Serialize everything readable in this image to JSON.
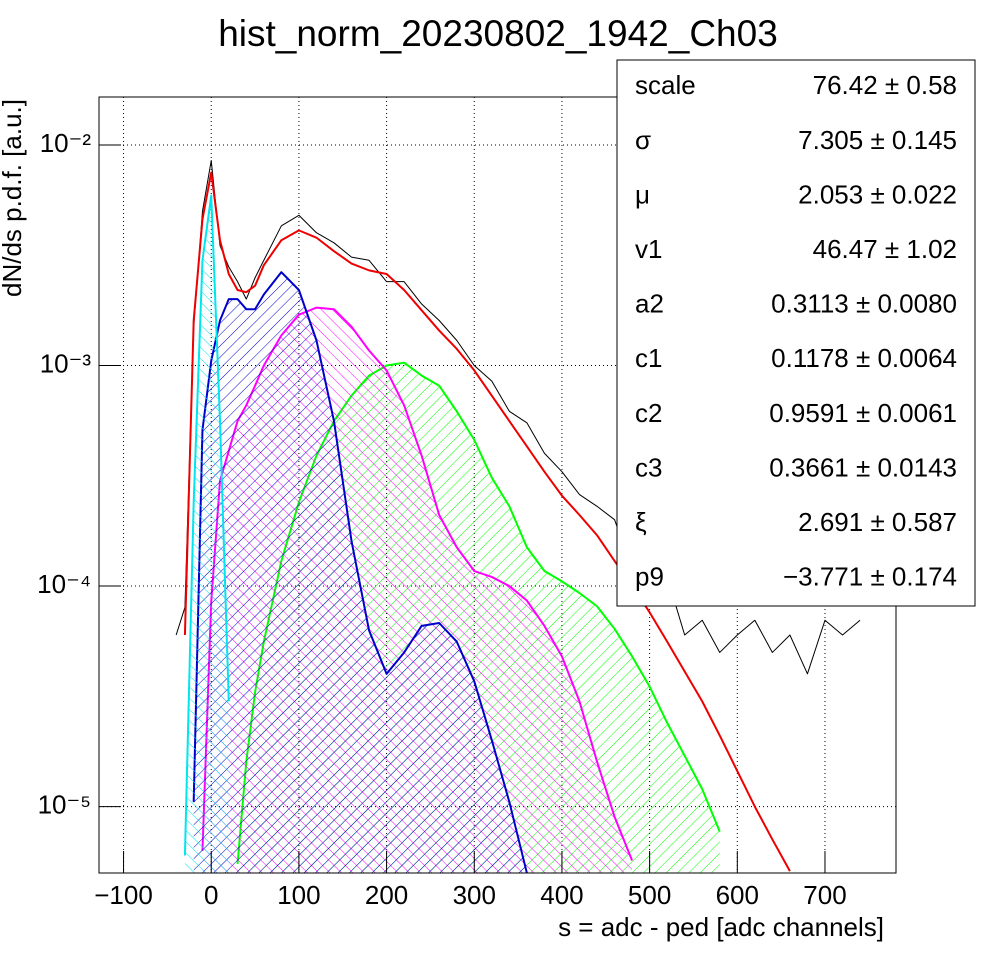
{
  "chart_data": {
    "type": "line",
    "title": "hist_norm_20230802_1942_Ch03",
    "x_label": "s = adc - ped [adc channels]",
    "y_label": "dN/ds p.d.f. [a.u.]",
    "log_y": true,
    "grid": true,
    "xlim": [
      -128,
      781
    ],
    "ylim": [
      5e-06,
      0.0165
    ],
    "xticks": [
      {
        "value": -100,
        "label": "−100"
      },
      0,
      100,
      200,
      300,
      400,
      500,
      600,
      700
    ],
    "yticks": [
      {
        "value": 0.01,
        "label": "10⁻²"
      },
      {
        "value": 0.001,
        "label": "10⁻³"
      },
      {
        "value": 0.0001,
        "label": "10⁻⁴"
      },
      {
        "value": 1e-05,
        "label": "10⁻⁵"
      }
    ],
    "x": [
      -40,
      -30,
      -20,
      -10,
      0,
      10,
      20,
      30,
      40,
      50,
      60,
      80,
      100,
      120,
      140,
      160,
      180,
      200,
      220,
      240,
      260,
      280,
      300,
      320,
      340,
      360,
      380,
      400,
      420,
      440,
      460,
      480,
      500,
      520,
      540,
      560,
      580,
      600,
      620,
      640,
      660,
      680,
      700,
      720,
      740
    ],
    "series": [
      {
        "color": "#000000",
        "values": [
          6e-05,
          8e-05,
          0.0015,
          0.005,
          0.0085,
          0.0035,
          0.0028,
          0.0024,
          0.002,
          0.0025,
          0.003,
          0.0043,
          0.0048,
          0.004,
          0.0036,
          0.0031,
          0.003,
          0.0024,
          0.0024,
          0.0019,
          0.0016,
          0.0013,
          0.001,
          0.00085,
          0.00062,
          0.00055,
          0.0004,
          0.00033,
          0.00026,
          0.00023,
          0.0002,
          0.00012,
          9e-05,
          0.00011,
          6e-05,
          7e-05,
          5e-05,
          6e-05,
          7e-05,
          5e-05,
          6e-05,
          4e-05,
          7e-05,
          6e-05,
          7e-05
        ]
      },
      {
        "color": "#00ff00",
        "fill": "hatch",
        "values": [
          null,
          null,
          null,
          null,
          null,
          null,
          null,
          5.5e-06,
          1.6e-05,
          3.3e-05,
          5.6e-05,
          0.00013,
          0.00024,
          0.00039,
          0.00056,
          0.00073,
          0.0009,
          0.001,
          0.00103,
          0.0009,
          0.00081,
          0.00062,
          0.00046,
          0.00031,
          0.00023,
          0.00015,
          0.000117,
          0.000105,
          9.3e-05,
          8.1e-05,
          6.4e-05,
          4.8e-05,
          3.5e-05,
          2.4e-05,
          1.7e-05,
          1.2e-05,
          7.7e-06,
          null,
          null,
          null,
          null,
          null,
          null,
          null,
          null
        ]
      },
      {
        "color": "#ff00ff",
        "fill": "hatch",
        "values": [
          null,
          null,
          null,
          6.3e-06,
          8.5e-05,
          0.0003,
          0.00041,
          0.00056,
          0.00066,
          0.00081,
          0.001,
          0.00137,
          0.0017,
          0.00183,
          0.0018,
          0.0015,
          0.00117,
          0.00095,
          0.00066,
          0.00039,
          0.00021,
          0.00015,
          0.000117,
          0.00011,
          0.0001,
          8.6e-05,
          6.6e-05,
          4.8e-05,
          3e-05,
          1.6e-05,
          9e-06,
          5.7e-06,
          null,
          null,
          null,
          null,
          null,
          null,
          null,
          null,
          null,
          null,
          null,
          null,
          null
        ]
      },
      {
        "color": "#0000cc",
        "fill": "hatch",
        "values": [
          null,
          null,
          1.05e-05,
          0.00051,
          0.00105,
          0.0016,
          0.002,
          0.002,
          0.0018,
          0.0018,
          0.0021,
          0.00265,
          0.0022,
          0.0013,
          0.00056,
          0.00016,
          6.3e-05,
          4e-05,
          5e-05,
          6.6e-05,
          6.8e-05,
          5.6e-05,
          3.7e-05,
          2e-05,
          1.05e-05,
          5e-06,
          null,
          null,
          null,
          null,
          null,
          null,
          null,
          null,
          null,
          null,
          null,
          null,
          null,
          null,
          null,
          null,
          null,
          null,
          null
        ]
      },
      {
        "color": "#00e5ee",
        "fill": "hatch",
        "values": [
          null,
          6e-06,
          0.00024,
          0.003,
          0.0059,
          0.00056,
          3e-05,
          null,
          null,
          null,
          null,
          null,
          null,
          null,
          null,
          null,
          null,
          null,
          null,
          null,
          null,
          null,
          null,
          null,
          null,
          null,
          null,
          null,
          null,
          null,
          null,
          null,
          null,
          null,
          null,
          null,
          null,
          null,
          null,
          null,
          null,
          null,
          null,
          null,
          null
        ]
      },
      {
        "color": "#ee0000",
        "values": [
          null,
          6e-05,
          0.0016,
          0.0046,
          0.0075,
          0.0037,
          0.0026,
          0.0022,
          0.00215,
          0.0023,
          0.00285,
          0.0037,
          0.0041,
          0.0038,
          0.0033,
          0.0029,
          0.0027,
          0.0026,
          0.0022,
          0.00178,
          0.00144,
          0.00119,
          0.00095,
          0.00073,
          0.00056,
          0.00043,
          0.00033,
          0.000257,
          0.00021,
          0.00017,
          0.00013,
          0.0001,
          7.6e-05,
          5.6e-05,
          4.1e-05,
          3e-05,
          2.1e-05,
          1.45e-05,
          1e-05,
          7.1e-06,
          5.1e-06,
          null,
          null,
          null,
          null
        ]
      }
    ],
    "stats": [
      {
        "name": "scale",
        "value": "76.42 ± 0.58"
      },
      {
        "name": "σ",
        "value": "7.305 ± 0.145"
      },
      {
        "name": "μ",
        "value": "2.053 ± 0.022"
      },
      {
        "name": "v1",
        "value": "46.47 ± 1.02"
      },
      {
        "name": "a2",
        "value": "0.3113 ± 0.0080"
      },
      {
        "name": "c1",
        "value": "0.1178 ± 0.0064"
      },
      {
        "name": "c2",
        "value": "0.9591 ± 0.0061"
      },
      {
        "name": "c3",
        "value": "0.3661 ± 0.0143"
      },
      {
        "name": "ξ",
        "value": "2.691 ± 0.587"
      },
      {
        "name": "p9",
        "value": "−3.771 ± 0.174"
      }
    ]
  }
}
